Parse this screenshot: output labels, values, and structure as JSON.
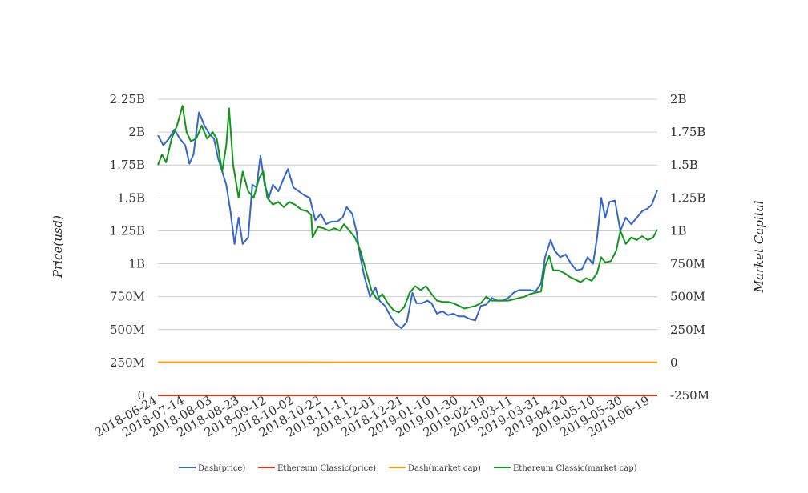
{
  "chart_data": {
    "type": "line",
    "title": "",
    "ylabel": "Price(usd)",
    "y2label": "Market Capital",
    "x_ticks": [
      "2018-06-24",
      "2018-07-14",
      "2018-08-03",
      "2018-08-23",
      "2018-09-12",
      "2018-10-02",
      "2018-10-22",
      "2018-11-11",
      "2018-12-01",
      "2018-12-21",
      "2019-01-10",
      "2019-01-30",
      "2019-02-19",
      "2019-03-11",
      "2019-03-31",
      "2019-04-20",
      "2019-05-10",
      "2019-05-30",
      "2019-06-19"
    ],
    "x_range": [
      "2018-06-24",
      "2019-06-24"
    ],
    "y_left": {
      "range": [
        0,
        2250000000
      ],
      "ticks": [
        "0",
        "250M",
        "500M",
        "750M",
        "1B",
        "1.25B",
        "1.5B",
        "1.75B",
        "2B",
        "2.25B"
      ]
    },
    "y_right": {
      "range": [
        -250000000,
        2000000000
      ],
      "ticks": [
        "-250M",
        "0",
        "250M",
        "500M",
        "750M",
        "1B",
        "1.25B",
        "1.5B",
        "1.75B",
        "2B"
      ]
    },
    "grid": true,
    "legend_position": "bottom",
    "series": [
      {
        "name": "Dash(price)",
        "axis": "left",
        "color": "#3366cc",
        "points": [
          [
            "2018-06-24",
            1975000000
          ],
          [
            "2018-06-28",
            1900000000
          ],
          [
            "2018-07-02",
            1950000000
          ],
          [
            "2018-07-06",
            2020000000
          ],
          [
            "2018-07-10",
            1950000000
          ],
          [
            "2018-07-14",
            1900000000
          ],
          [
            "2018-07-17",
            1760000000
          ],
          [
            "2018-07-20",
            1830000000
          ],
          [
            "2018-07-24",
            2150000000
          ],
          [
            "2018-07-28",
            2050000000
          ],
          [
            "2018-08-01",
            1980000000
          ],
          [
            "2018-08-04",
            1950000000
          ],
          [
            "2018-08-07",
            1800000000
          ],
          [
            "2018-08-10",
            1700000000
          ],
          [
            "2018-08-13",
            1600000000
          ],
          [
            "2018-08-16",
            1400000000
          ],
          [
            "2018-08-19",
            1150000000
          ],
          [
            "2018-08-22",
            1350000000
          ],
          [
            "2018-08-25",
            1150000000
          ],
          [
            "2018-08-29",
            1200000000
          ],
          [
            "2018-09-01",
            1600000000
          ],
          [
            "2018-09-04",
            1580000000
          ],
          [
            "2018-09-07",
            1820000000
          ],
          [
            "2018-09-10",
            1600000000
          ],
          [
            "2018-09-13",
            1500000000
          ],
          [
            "2018-09-16",
            1600000000
          ],
          [
            "2018-09-20",
            1550000000
          ],
          [
            "2018-09-24",
            1650000000
          ],
          [
            "2018-09-27",
            1720000000
          ],
          [
            "2018-10-01",
            1580000000
          ],
          [
            "2018-10-05",
            1550000000
          ],
          [
            "2018-10-09",
            1520000000
          ],
          [
            "2018-10-13",
            1500000000
          ],
          [
            "2018-10-17",
            1330000000
          ],
          [
            "2018-10-21",
            1380000000
          ],
          [
            "2018-10-25",
            1300000000
          ],
          [
            "2018-10-29",
            1320000000
          ],
          [
            "2018-11-02",
            1320000000
          ],
          [
            "2018-11-06",
            1350000000
          ],
          [
            "2018-11-09",
            1430000000
          ],
          [
            "2018-11-13",
            1380000000
          ],
          [
            "2018-11-16",
            1250000000
          ],
          [
            "2018-11-19",
            1050000000
          ],
          [
            "2018-11-22",
            900000000
          ],
          [
            "2018-11-26",
            750000000
          ],
          [
            "2018-11-30",
            820000000
          ],
          [
            "2018-12-03",
            720000000
          ],
          [
            "2018-12-07",
            680000000
          ],
          [
            "2018-12-11",
            600000000
          ],
          [
            "2018-12-15",
            540000000
          ],
          [
            "2018-12-19",
            510000000
          ],
          [
            "2018-12-23",
            560000000
          ],
          [
            "2018-12-27",
            780000000
          ],
          [
            "2018-12-30",
            700000000
          ],
          [
            "2019-01-03",
            700000000
          ],
          [
            "2019-01-07",
            720000000
          ],
          [
            "2019-01-10",
            700000000
          ],
          [
            "2019-01-14",
            620000000
          ],
          [
            "2019-01-18",
            640000000
          ],
          [
            "2019-01-22",
            610000000
          ],
          [
            "2019-01-26",
            620000000
          ],
          [
            "2019-01-30",
            600000000
          ],
          [
            "2019-02-03",
            600000000
          ],
          [
            "2019-02-07",
            580000000
          ],
          [
            "2019-02-11",
            570000000
          ],
          [
            "2019-02-15",
            680000000
          ],
          [
            "2019-02-19",
            690000000
          ],
          [
            "2019-02-23",
            740000000
          ],
          [
            "2019-02-27",
            720000000
          ],
          [
            "2019-03-03",
            720000000
          ],
          [
            "2019-03-07",
            740000000
          ],
          [
            "2019-03-11",
            780000000
          ],
          [
            "2019-03-15",
            800000000
          ],
          [
            "2019-03-19",
            800000000
          ],
          [
            "2019-03-23",
            800000000
          ],
          [
            "2019-03-27",
            790000000
          ],
          [
            "2019-03-31",
            850000000
          ],
          [
            "2019-04-03",
            1050000000
          ],
          [
            "2019-04-07",
            1180000000
          ],
          [
            "2019-04-10",
            1100000000
          ],
          [
            "2019-04-14",
            1050000000
          ],
          [
            "2019-04-18",
            1070000000
          ],
          [
            "2019-04-22",
            1000000000
          ],
          [
            "2019-04-26",
            950000000
          ],
          [
            "2019-04-30",
            960000000
          ],
          [
            "2019-05-04",
            1050000000
          ],
          [
            "2019-05-08",
            1000000000
          ],
          [
            "2019-05-11",
            1200000000
          ],
          [
            "2019-05-14",
            1500000000
          ],
          [
            "2019-05-17",
            1350000000
          ],
          [
            "2019-05-20",
            1470000000
          ],
          [
            "2019-05-24",
            1480000000
          ],
          [
            "2019-05-28",
            1250000000
          ],
          [
            "2019-06-01",
            1350000000
          ],
          [
            "2019-06-05",
            1300000000
          ],
          [
            "2019-06-09",
            1350000000
          ],
          [
            "2019-06-13",
            1400000000
          ],
          [
            "2019-06-17",
            1420000000
          ],
          [
            "2019-06-20",
            1450000000
          ],
          [
            "2019-06-24",
            1560000000
          ]
        ]
      },
      {
        "name": "Ethereum Classic(price)",
        "axis": "left",
        "color": "#dc3912",
        "points": [
          [
            "2018-06-24",
            8
          ],
          [
            "2018-09-01",
            11
          ],
          [
            "2018-11-11",
            8
          ],
          [
            "2019-01-10",
            5
          ],
          [
            "2019-03-31",
            5
          ],
          [
            "2019-06-24",
            9
          ]
        ]
      },
      {
        "name": "Dash(market cap)",
        "axis": "right",
        "color": "#ff9900",
        "points": [
          [
            "2018-06-24",
            1700000
          ],
          [
            "2018-09-01",
            1500000
          ],
          [
            "2018-11-11",
            1200000
          ],
          [
            "2019-01-10",
            700000
          ],
          [
            "2019-03-31",
            800000
          ],
          [
            "2019-06-24",
            1300000
          ]
        ]
      },
      {
        "name": "Ethereum Classic(market cap)",
        "axis": "right",
        "color": "#109618",
        "points": [
          [
            "2018-06-24",
            1500000000
          ],
          [
            "2018-06-27",
            1580000000
          ],
          [
            "2018-06-30",
            1520000000
          ],
          [
            "2018-07-04",
            1700000000
          ],
          [
            "2018-07-08",
            1800000000
          ],
          [
            "2018-07-12",
            1950000000
          ],
          [
            "2018-07-15",
            1750000000
          ],
          [
            "2018-07-18",
            1680000000
          ],
          [
            "2018-07-22",
            1700000000
          ],
          [
            "2018-07-26",
            1800000000
          ],
          [
            "2018-07-30",
            1700000000
          ],
          [
            "2018-08-03",
            1750000000
          ],
          [
            "2018-08-06",
            1700000000
          ],
          [
            "2018-08-10",
            1450000000
          ],
          [
            "2018-08-13",
            1650000000
          ],
          [
            "2018-08-15",
            1930000000
          ],
          [
            "2018-08-18",
            1500000000
          ],
          [
            "2018-08-22",
            1250000000
          ],
          [
            "2018-08-25",
            1450000000
          ],
          [
            "2018-08-29",
            1300000000
          ],
          [
            "2018-09-02",
            1250000000
          ],
          [
            "2018-09-06",
            1400000000
          ],
          [
            "2018-09-09",
            1450000000
          ],
          [
            "2018-09-12",
            1250000000
          ],
          [
            "2018-09-16",
            1200000000
          ],
          [
            "2018-09-20",
            1220000000
          ],
          [
            "2018-09-24",
            1180000000
          ],
          [
            "2018-09-28",
            1220000000
          ],
          [
            "2018-10-02",
            1200000000
          ],
          [
            "2018-10-07",
            1160000000
          ],
          [
            "2018-10-11",
            1150000000
          ],
          [
            "2018-10-14",
            1120000000
          ],
          [
            "2018-10-15",
            950000000
          ],
          [
            "2018-10-19",
            1030000000
          ],
          [
            "2018-10-23",
            1020000000
          ],
          [
            "2018-10-27",
            1000000000
          ],
          [
            "2018-10-31",
            1020000000
          ],
          [
            "2018-11-04",
            1000000000
          ],
          [
            "2018-11-07",
            1050000000
          ],
          [
            "2018-11-11",
            1000000000
          ],
          [
            "2018-11-15",
            950000000
          ],
          [
            "2018-11-19",
            850000000
          ],
          [
            "2018-11-23",
            700000000
          ],
          [
            "2018-11-27",
            550000000
          ],
          [
            "2018-12-01",
            480000000
          ],
          [
            "2018-12-05",
            520000000
          ],
          [
            "2018-12-09",
            450000000
          ],
          [
            "2018-12-13",
            400000000
          ],
          [
            "2018-12-17",
            380000000
          ],
          [
            "2018-12-21",
            420000000
          ],
          [
            "2018-12-25",
            530000000
          ],
          [
            "2018-12-29",
            580000000
          ],
          [
            "2019-01-02",
            550000000
          ],
          [
            "2019-01-06",
            580000000
          ],
          [
            "2019-01-10",
            520000000
          ],
          [
            "2019-01-14",
            470000000
          ],
          [
            "2019-01-18",
            460000000
          ],
          [
            "2019-01-22",
            460000000
          ],
          [
            "2019-01-26",
            450000000
          ],
          [
            "2019-01-30",
            430000000
          ],
          [
            "2019-02-03",
            410000000
          ],
          [
            "2019-02-07",
            420000000
          ],
          [
            "2019-02-11",
            430000000
          ],
          [
            "2019-02-15",
            450000000
          ],
          [
            "2019-02-19",
            500000000
          ],
          [
            "2019-02-23",
            470000000
          ],
          [
            "2019-02-27",
            470000000
          ],
          [
            "2019-03-03",
            470000000
          ],
          [
            "2019-03-07",
            470000000
          ],
          [
            "2019-03-11",
            480000000
          ],
          [
            "2019-03-15",
            490000000
          ],
          [
            "2019-03-19",
            500000000
          ],
          [
            "2019-03-23",
            520000000
          ],
          [
            "2019-03-27",
            530000000
          ],
          [
            "2019-03-31",
            540000000
          ],
          [
            "2019-04-03",
            730000000
          ],
          [
            "2019-04-06",
            810000000
          ],
          [
            "2019-04-09",
            700000000
          ],
          [
            "2019-04-13",
            700000000
          ],
          [
            "2019-04-17",
            680000000
          ],
          [
            "2019-04-21",
            650000000
          ],
          [
            "2019-04-25",
            630000000
          ],
          [
            "2019-04-29",
            610000000
          ],
          [
            "2019-05-03",
            640000000
          ],
          [
            "2019-05-07",
            620000000
          ],
          [
            "2019-05-11",
            680000000
          ],
          [
            "2019-05-14",
            800000000
          ],
          [
            "2019-05-17",
            760000000
          ],
          [
            "2019-05-21",
            770000000
          ],
          [
            "2019-05-25",
            850000000
          ],
          [
            "2019-05-28",
            1000000000
          ],
          [
            "2019-06-01",
            900000000
          ],
          [
            "2019-06-05",
            950000000
          ],
          [
            "2019-06-09",
            930000000
          ],
          [
            "2019-06-13",
            960000000
          ],
          [
            "2019-06-17",
            930000000
          ],
          [
            "2019-06-21",
            950000000
          ],
          [
            "2019-06-24",
            1010000000
          ]
        ]
      }
    ]
  }
}
